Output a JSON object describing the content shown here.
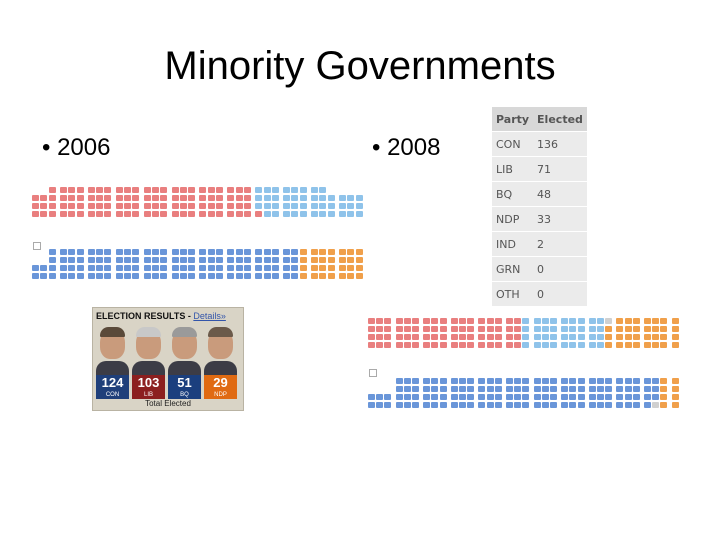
{
  "slide": {
    "title": "Minority Governments",
    "bullet_2006": "•  2006",
    "bullet_2008": "•  2008"
  },
  "colors": {
    "CON": "#6a96d9",
    "LIB": "#e97f7f",
    "BQ": "#8fc3ea",
    "NDP": "#f0a04b",
    "empty": "#d0d0d0"
  },
  "results_2008": {
    "headers": [
      "Party",
      "Elected"
    ],
    "rows": [
      {
        "party": "CON",
        "elected": "136"
      },
      {
        "party": "LIB",
        "elected": "71"
      },
      {
        "party": "BQ",
        "elected": "48"
      },
      {
        "party": "NDP",
        "elected": "33"
      },
      {
        "party": "IND",
        "elected": "2"
      },
      {
        "party": "GRN",
        "elected": "0"
      },
      {
        "party": "OTH",
        "elected": "0"
      }
    ]
  },
  "election_2006": {
    "header": "ELECTION RESULTS",
    "details_link": "Details»",
    "footer": "Total Elected",
    "parties": [
      {
        "count": "124",
        "label": "CON",
        "color": "#1f3f7a"
      },
      {
        "count": "103",
        "label": "LIB",
        "color": "#8c1f1f"
      },
      {
        "count": "51",
        "label": "BQ",
        "color": "#1b3f7e"
      },
      {
        "count": "29",
        "label": "NDP",
        "color": "#e06a12"
      }
    ]
  }
}
